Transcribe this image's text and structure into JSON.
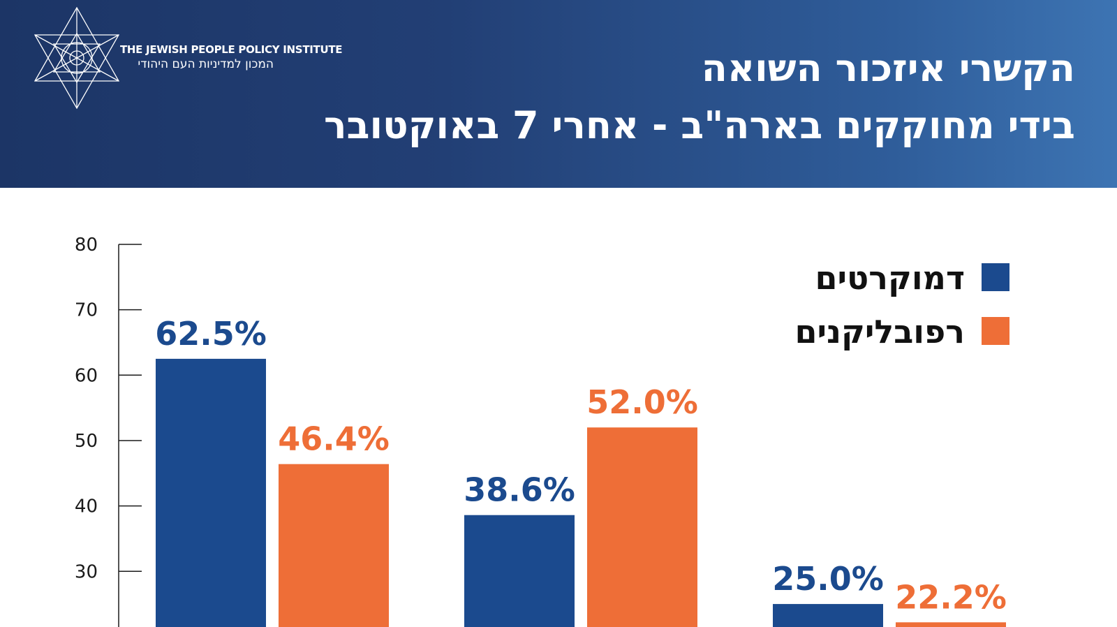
{
  "header": {
    "org_name_en": "THE JEWISH PEOPLE POLICY INSTITUTE",
    "org_name_he": "המכון למדיניות העם היהודי",
    "title_line1": "הקשרי איזכור השואה",
    "title_line2": "בידי מחוקקים בארה\"ב - אחרי 7 באוקטובר"
  },
  "colors": {
    "democrats": "#1b4a8e",
    "republicans": "#ee6e37",
    "header_dark": "#1c3566",
    "header_light": "#3d74b3"
  },
  "chart_data": {
    "type": "bar",
    "title": "הקשרי איזכור השואה בידי מחוקקים בארה\"ב - אחרי 7 באוקטובר",
    "categories": [
      "",
      "",
      ""
    ],
    "series": [
      {
        "name": "דמוקרטים",
        "values": [
          62.5,
          38.6,
          25.0
        ],
        "labels": [
          "62.5%",
          "38.6%",
          "25.0%"
        ]
      },
      {
        "name": "רפובליקנים",
        "values": [
          46.4,
          52.0,
          22.2
        ],
        "labels": [
          "46.4%",
          "52.0%",
          "22.2%"
        ]
      }
    ],
    "y_ticks": [
      80,
      70,
      60,
      50,
      40,
      30
    ],
    "ylim": [
      20,
      80
    ],
    "legend_position": "top-right",
    "grid": false
  }
}
